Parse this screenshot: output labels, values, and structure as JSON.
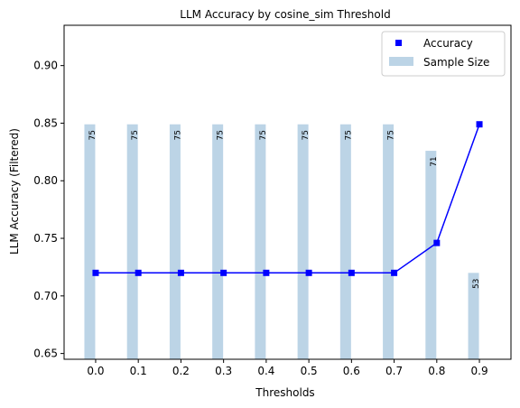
{
  "chart_data": {
    "type": "line",
    "title": "LLM Accuracy by cosine_sim Threshold",
    "xlabel": "Thresholds",
    "ylabel": "LLM Accuracy (Filtered)",
    "ylim": [
      0.645,
      0.935
    ],
    "x": [
      0.0,
      0.1,
      0.2,
      0.3,
      0.4,
      0.5,
      0.6,
      0.7,
      0.8,
      0.9
    ],
    "x_tick_labels": [
      "0.0",
      "0.1",
      "0.2",
      "0.3",
      "0.4",
      "0.5",
      "0.6",
      "0.7",
      "0.8",
      "0.9"
    ],
    "y_ticks": [
      0.65,
      0.7,
      0.75,
      0.8,
      0.85,
      0.9
    ],
    "y_tick_labels": [
      "0.65",
      "0.70",
      "0.75",
      "0.80",
      "0.85",
      "0.90"
    ],
    "series": [
      {
        "name": "Accuracy",
        "kind": "line+marker",
        "color": "#0000ff",
        "values": [
          0.72,
          0.72,
          0.72,
          0.72,
          0.72,
          0.72,
          0.72,
          0.72,
          0.746,
          0.849
        ]
      },
      {
        "name": "Sample Size",
        "kind": "bar",
        "color": "#bcd4e6",
        "values": [
          75,
          75,
          75,
          75,
          75,
          75,
          75,
          75,
          71,
          53
        ],
        "labels": [
          "75",
          "75",
          "75",
          "75",
          "75",
          "75",
          "75",
          "75",
          "71",
          "53"
        ],
        "bar_top_accuracy_units": [
          0.849,
          0.849,
          0.849,
          0.849,
          0.849,
          0.849,
          0.849,
          0.849,
          0.826,
          0.72
        ]
      }
    ],
    "legend": {
      "placement": "top-right",
      "entries": [
        "Accuracy",
        "Sample Size"
      ]
    },
    "grid": false
  }
}
